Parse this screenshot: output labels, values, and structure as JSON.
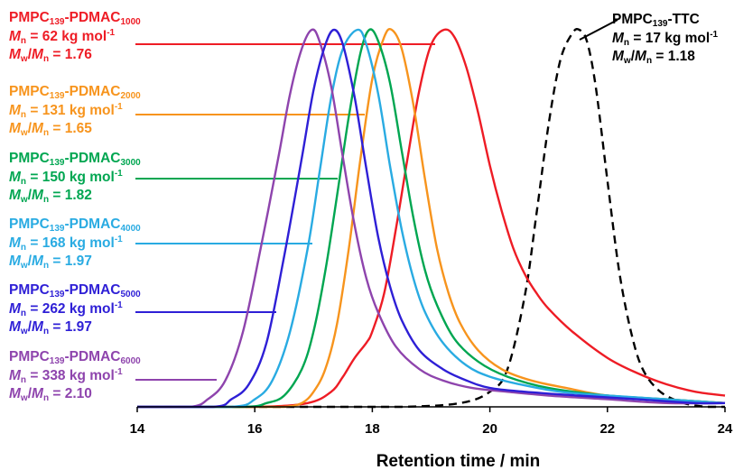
{
  "chart_data": {
    "type": "line",
    "xlabel": "Retention time / min",
    "ylabel": "",
    "xlim": [
      14,
      24
    ],
    "ylim": [
      0,
      1
    ],
    "x_ticks": [
      "14",
      "16",
      "18",
      "20",
      "22",
      "24"
    ],
    "y_ticks_visible": false,
    "grid": false,
    "legend": "left-side annotation labels with leader lines",
    "series": [
      {
        "name": "PMPC139-PDMAC1000",
        "color": "#ee1c25",
        "dash": "solid",
        "label": {
          "polymer": "PMPC",
          "dp1": "139",
          "block": "-PDMAC",
          "dp2": "1000",
          "mn_value": " = 62 kg mol",
          "mw_mn_value": " = 1.76"
        },
        "x": [
          14.0,
          16.0,
          16.9,
          17.3,
          17.5,
          17.7,
          17.9,
          18.0,
          18.2,
          18.4,
          18.6,
          18.8,
          19.0,
          19.22,
          19.4,
          19.6,
          19.8,
          20.0,
          20.2,
          20.4,
          20.6,
          20.8,
          21.0,
          21.4,
          22.0,
          22.5,
          23.0,
          23.5,
          24.0
        ],
        "y": [
          0.0,
          0.0,
          0.01,
          0.04,
          0.08,
          0.13,
          0.17,
          0.2,
          0.3,
          0.47,
          0.66,
          0.84,
          0.96,
          1.0,
          0.98,
          0.9,
          0.78,
          0.64,
          0.52,
          0.42,
          0.35,
          0.3,
          0.26,
          0.2,
          0.13,
          0.09,
          0.06,
          0.04,
          0.03
        ]
      },
      {
        "name": "PMPC139-PDMAC2000",
        "color": "#f7941d",
        "dash": "solid",
        "label": {
          "polymer": "PMPC",
          "dp1": "139",
          "block": "-PDMAC",
          "dp2": "2000",
          "mn_value": " = 131 kg mol",
          "mw_mn_value": " = 1.65"
        },
        "x": [
          14.0,
          16.0,
          16.5,
          16.8,
          17.0,
          17.2,
          17.4,
          17.6,
          17.8,
          18.0,
          18.2,
          18.33,
          18.5,
          18.7,
          18.9,
          19.1,
          19.3,
          19.5,
          19.8,
          20.2,
          20.7,
          21.3,
          22.0,
          23.0,
          24.0
        ],
        "y": [
          0.0,
          0.0,
          0.0,
          0.01,
          0.04,
          0.1,
          0.22,
          0.42,
          0.66,
          0.87,
          0.98,
          1.0,
          0.95,
          0.8,
          0.6,
          0.42,
          0.3,
          0.22,
          0.15,
          0.1,
          0.07,
          0.05,
          0.03,
          0.02,
          0.01
        ]
      },
      {
        "name": "PMPC139-PDMAC3000",
        "color": "#00a651",
        "dash": "solid",
        "label": {
          "polymer": "PMPC",
          "dp1": "139",
          "block": "-PDMAC",
          "dp2": "3000",
          "mn_value": " = 150 kg mol",
          "mw_mn_value": " = 1.82"
        },
        "x": [
          14.0,
          15.8,
          16.2,
          16.5,
          16.8,
          17.0,
          17.2,
          17.4,
          17.6,
          17.8,
          17.95,
          18.1,
          18.3,
          18.5,
          18.7,
          18.9,
          19.1,
          19.4,
          19.8,
          20.3,
          21.0,
          22.0,
          23.0,
          24.0
        ],
        "y": [
          0.0,
          0.0,
          0.01,
          0.03,
          0.1,
          0.2,
          0.36,
          0.56,
          0.77,
          0.94,
          1.0,
          0.97,
          0.86,
          0.68,
          0.5,
          0.36,
          0.27,
          0.18,
          0.12,
          0.08,
          0.05,
          0.03,
          0.02,
          0.01
        ]
      },
      {
        "name": "PMPC139-PDMAC4000",
        "color": "#29abe2",
        "dash": "solid",
        "label": {
          "polymer": "PMPC",
          "dp1": "139",
          "block": "-PDMAC",
          "dp2": "4000",
          "mn_value": " = 168 kg mol",
          "mw_mn_value": " = 1.97"
        },
        "x": [
          14.0,
          15.6,
          16.0,
          16.3,
          16.6,
          16.9,
          17.1,
          17.3,
          17.5,
          17.75,
          17.9,
          18.1,
          18.3,
          18.5,
          18.7,
          18.9,
          19.2,
          19.6,
          20.0,
          20.5,
          21.2,
          22.0,
          23.0,
          24.0
        ],
        "y": [
          0.0,
          0.0,
          0.02,
          0.07,
          0.2,
          0.42,
          0.62,
          0.82,
          0.95,
          1.0,
          0.96,
          0.83,
          0.64,
          0.47,
          0.34,
          0.25,
          0.17,
          0.11,
          0.08,
          0.06,
          0.04,
          0.03,
          0.02,
          0.01
        ]
      },
      {
        "name": "PMPC139-PDMAC5000",
        "color": "#2e1fd6",
        "dash": "solid",
        "label": {
          "polymer": "PMPC",
          "dp1": "139",
          "block": "-PDMAC",
          "dp2": "5000",
          "mn_value": " = 262 kg mol",
          "mw_mn_value": " = 1.97"
        },
        "x": [
          14.0,
          15.3,
          15.6,
          15.9,
          16.2,
          16.5,
          16.8,
          17.0,
          17.2,
          17.35,
          17.5,
          17.7,
          17.9,
          18.1,
          18.3,
          18.5,
          18.8,
          19.2,
          19.6,
          20.0,
          20.6,
          21.5,
          22.5,
          23.5,
          24.0
        ],
        "y": [
          0.0,
          0.0,
          0.02,
          0.06,
          0.17,
          0.4,
          0.66,
          0.84,
          0.96,
          1.0,
          0.96,
          0.82,
          0.63,
          0.45,
          0.32,
          0.23,
          0.15,
          0.1,
          0.07,
          0.05,
          0.04,
          0.03,
          0.02,
          0.01,
          0.01
        ]
      },
      {
        "name": "PMPC139-PDMAC6000",
        "color": "#8e44ad",
        "dash": "solid",
        "label": {
          "polymer": "PMPC",
          "dp1": "139",
          "block": "-PDMAC",
          "dp2": "6000",
          "mn_value": " = 338 kg mol",
          "mw_mn_value": " = 2.10"
        },
        "x": [
          14.0,
          14.9,
          15.2,
          15.5,
          15.8,
          16.1,
          16.4,
          16.6,
          16.8,
          16.97,
          17.1,
          17.3,
          17.5,
          17.7,
          17.9,
          18.1,
          18.4,
          18.8,
          19.2,
          19.7,
          20.3,
          21.0,
          22.0,
          23.0,
          24.0
        ],
        "y": [
          0.0,
          0.0,
          0.02,
          0.07,
          0.2,
          0.42,
          0.66,
          0.83,
          0.95,
          1.0,
          0.97,
          0.85,
          0.66,
          0.48,
          0.34,
          0.25,
          0.16,
          0.1,
          0.07,
          0.05,
          0.04,
          0.03,
          0.02,
          0.01,
          0.01
        ]
      },
      {
        "name": "PMPC139-TTC",
        "color": "#000000",
        "dash": "dashed",
        "label": {
          "polymer": "PMPC",
          "dp1": "139",
          "block": "-TTC",
          "mn_value": " = 17 kg mol",
          "mw_mn_value": " = 1.18"
        },
        "x": [
          14.0,
          17.0,
          18.5,
          19.5,
          20.0,
          20.3,
          20.6,
          20.8,
          21.0,
          21.2,
          21.4,
          21.52,
          21.65,
          21.8,
          22.0,
          22.2,
          22.4,
          22.6,
          22.9,
          23.3,
          23.7,
          24.0
        ],
        "y": [
          0.0,
          0.0,
          0.0,
          0.01,
          0.04,
          0.1,
          0.3,
          0.52,
          0.75,
          0.92,
          0.99,
          1.0,
          0.97,
          0.85,
          0.6,
          0.36,
          0.2,
          0.1,
          0.04,
          0.01,
          0.0,
          0.0
        ]
      }
    ]
  }
}
